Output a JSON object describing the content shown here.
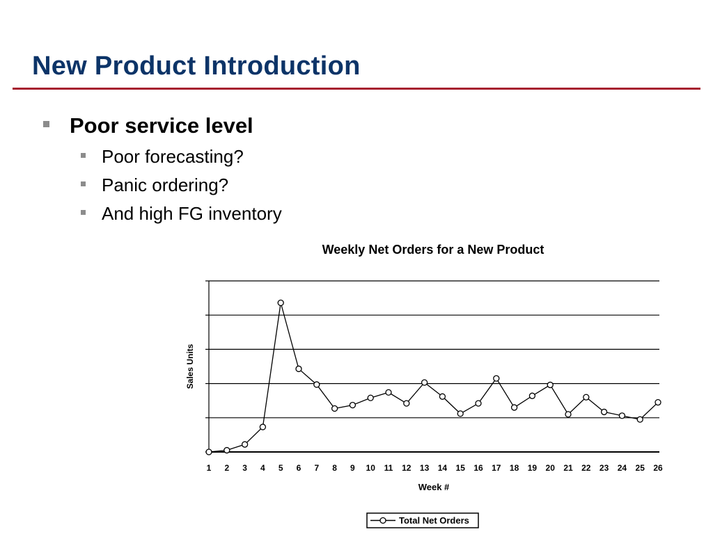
{
  "slide": {
    "title": "New Product Introduction",
    "accent_color": "#a61d2e",
    "title_color": "#0c3468"
  },
  "bullets": [
    {
      "text": "Poor service level",
      "children": [
        "Poor forecasting?",
        "Panic ordering?",
        "And high FG inventory"
      ]
    }
  ],
  "chart_data": {
    "type": "line",
    "title": "Weekly Net Orders for a New Product",
    "xlabel": "Week #",
    "ylabel": "Sales Units",
    "categories": [
      "1",
      "2",
      "3",
      "4",
      "5",
      "6",
      "7",
      "8",
      "9",
      "10",
      "11",
      "12",
      "13",
      "14",
      "15",
      "16",
      "17",
      "18",
      "19",
      "20",
      "21",
      "22",
      "23",
      "24",
      "25",
      "26"
    ],
    "series": [
      {
        "name": "Total Net Orders",
        "values": [
          0,
          0.05,
          0.22,
          0.73,
          4.36,
          2.43,
          1.97,
          1.27,
          1.37,
          1.58,
          1.74,
          1.42,
          2.03,
          1.62,
          1.12,
          1.42,
          2.15,
          1.3,
          1.64,
          1.96,
          1.1,
          1.6,
          1.17,
          1.06,
          0.95,
          1.45
        ],
        "color": "#000000",
        "marker": "open-circle"
      }
    ],
    "ylim": [
      0,
      5
    ],
    "y_tick_labels_shown": false,
    "grid": "horizontal",
    "legend": "bottom-center"
  }
}
